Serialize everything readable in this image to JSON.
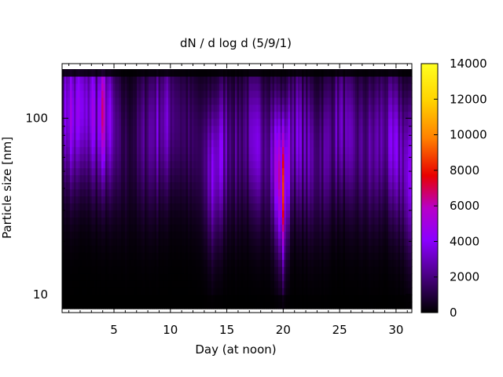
{
  "chart_data": {
    "type": "heatmap",
    "title": "dN / d log d (5/9/1)",
    "xlabel": "Day (at noon)",
    "ylabel": "Particle size [nm]",
    "x_range": [
      0.4,
      31.4
    ],
    "y_range_nm": [
      8.3,
      190
    ],
    "y_scale": "log",
    "x_ticks": [
      5,
      10,
      15,
      20,
      25,
      30
    ],
    "y_ticks": [
      10,
      100
    ],
    "y_tick_labels": [
      "10",
      "100"
    ],
    "colorbar": {
      "range": [
        0,
        14000
      ],
      "ticks": [
        0,
        2000,
        4000,
        6000,
        8000,
        10000,
        12000,
        14000
      ],
      "tick_labels": [
        "0",
        "2000",
        "4000",
        "6000",
        "8000",
        "10000",
        "12000",
        "14000"
      ],
      "colormap": "gnuplot default (black-purple-red-orange-yellow)",
      "stops": [
        "#000000",
        "#5a00a0",
        "#8a00ff",
        "#b800c8",
        "#e80000",
        "#ff8000",
        "#ffd200",
        "#ffff20"
      ]
    },
    "intensity_profile": {
      "day": [
        0.5,
        1,
        1.5,
        2,
        2.5,
        3,
        3.5,
        4,
        4.5,
        5,
        5.5,
        6,
        6.5,
        7,
        8,
        9,
        10,
        11,
        12,
        13,
        13.7,
        14.3,
        15,
        16,
        17,
        18,
        19,
        20,
        20.5,
        21,
        22,
        23,
        24,
        25,
        26,
        27,
        28,
        29,
        30,
        31
      ],
      "peak_dN_dlogd": [
        2500,
        5200,
        3800,
        4200,
        3000,
        4800,
        3600,
        5500,
        4000,
        2400,
        1500,
        1300,
        1200,
        1400,
        2600,
        3300,
        2700,
        1800,
        1400,
        1600,
        4200,
        3800,
        2800,
        2000,
        2600,
        3200,
        3600,
        7200,
        4000,
        3400,
        2800,
        2400,
        2500,
        2900,
        2300,
        2100,
        2600,
        2800,
        3300,
        3500
      ],
      "peak_size_nm": [
        110,
        110,
        100,
        120,
        110,
        110,
        100,
        110,
        100,
        90,
        80,
        70,
        70,
        80,
        80,
        90,
        100,
        90,
        80,
        60,
        50,
        60,
        70,
        70,
        80,
        70,
        60,
        40,
        60,
        80,
        70,
        60,
        70,
        90,
        80,
        70,
        70,
        80,
        70,
        50
      ]
    },
    "grid": false,
    "legend": "colorbar-right"
  }
}
